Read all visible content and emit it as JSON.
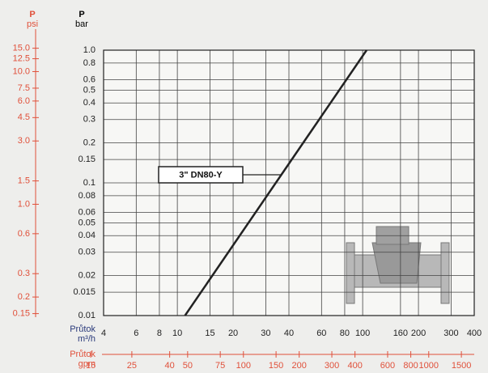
{
  "chart_data": {
    "type": "line",
    "log_scale": true,
    "grid": true,
    "y_label": "P",
    "y_unit": "bar",
    "y2_label": "P",
    "y2_unit": "psi",
    "x_label": "Průtok",
    "x_unit": "m³/h",
    "x2_label": "Průtok",
    "x2_unit": "gpm",
    "xlim": [
      4,
      400
    ],
    "xticks": [
      4,
      6,
      8,
      10,
      15,
      20,
      30,
      40,
      60,
      80,
      100,
      160,
      200,
      300,
      400
    ],
    "x2lim": [
      17.6,
      1760
    ],
    "x2ticks": [
      15,
      25,
      40,
      50,
      75,
      100,
      150,
      200,
      300,
      400,
      600,
      800,
      1000,
      1500
    ],
    "ylim": [
      0.01,
      1
    ],
    "yticks": [
      {
        "value": 1,
        "label": "1.0"
      },
      0.8,
      0.6,
      0.5,
      0.4,
      0.3,
      0.2,
      0.15,
      0.1,
      0.08,
      0.06,
      0.05,
      0.04,
      0.03,
      0.02,
      0.015,
      0.01
    ],
    "y2lim": [
      0.145,
      14.5
    ],
    "y2ticks": [
      {
        "value": 15,
        "label": "15.0"
      },
      12.5,
      {
        "value": 10,
        "label": "10.0"
      },
      7.5,
      {
        "value": 6,
        "label": "6.0"
      },
      4.5,
      {
        "value": 3,
        "label": "3.0"
      },
      1.5,
      {
        "value": 1,
        "label": "1.0"
      },
      0.6,
      0.3,
      0.2,
      0.15
    ],
    "series": [
      {
        "name": "3\" DN80-Y",
        "color": "#222222",
        "x": [
          11,
          105
        ],
        "values": [
          0.01,
          1.0
        ]
      }
    ],
    "y2_color": "#e0503a"
  }
}
